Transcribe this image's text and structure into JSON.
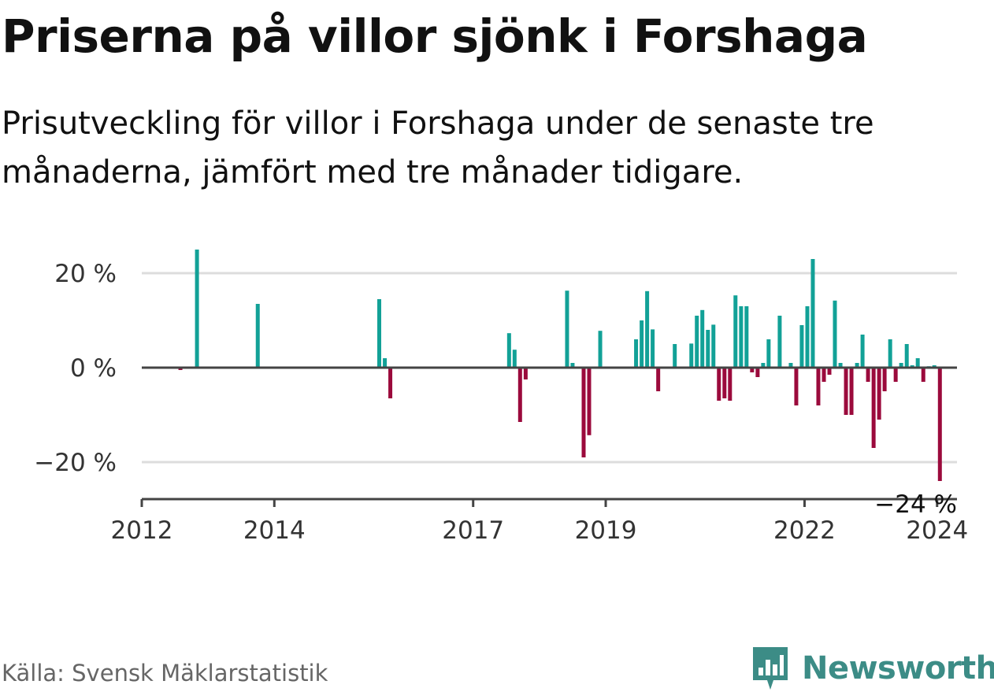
{
  "header": {
    "title": "Priserna på villor sjönk i Forshaga",
    "subtitle": "Prisutveckling för villor i Forshaga under de senaste tre månaderna, jämfört med tre månader tidigare."
  },
  "footer": {
    "source": "Källa: Svensk Mäklarstatistik",
    "brand": "Newsworthy"
  },
  "colors": {
    "positive": "#12a197",
    "negative": "#9b0a3c",
    "gridline": "#dddddd",
    "axis": "#444444",
    "brand": "#3c8c86"
  },
  "chart_data": {
    "type": "bar",
    "title": "Priserna på villor sjönk i Forshaga",
    "xlabel": "",
    "ylabel": "",
    "ylim": [
      -27,
      25
    ],
    "xlim": [
      2012,
      2024.3
    ],
    "y_ticks": [
      {
        "value": 20,
        "label": "20 %"
      },
      {
        "value": 0,
        "label": "0 %"
      },
      {
        "value": -20,
        "label": "−20 %"
      }
    ],
    "x_ticks": [
      {
        "value": 2012,
        "label": "2012"
      },
      {
        "value": 2014,
        "label": "2014"
      },
      {
        "value": 2017,
        "label": "2017"
      },
      {
        "value": 2019,
        "label": "2019"
      },
      {
        "value": 2022,
        "label": "2022"
      },
      {
        "value": 2024,
        "label": "2024"
      }
    ],
    "annotation": {
      "label": "−24 %",
      "value": -24
    },
    "x": [
      2012.583,
      2012.833,
      2013.75,
      2015.583,
      2015.667,
      2015.75,
      2017.542,
      2017.625,
      2017.708,
      2017.792,
      2018.417,
      2018.5,
      2018.667,
      2018.75,
      2018.917,
      2019.458,
      2019.542,
      2019.625,
      2019.708,
      2019.792,
      2020.042,
      2020.292,
      2020.375,
      2020.458,
      2020.542,
      2020.625,
      2020.708,
      2020.792,
      2020.875,
      2020.958,
      2021.042,
      2021.125,
      2021.208,
      2021.292,
      2021.375,
      2021.458,
      2021.625,
      2021.792,
      2021.875,
      2021.958,
      2022.042,
      2022.125,
      2022.208,
      2022.292,
      2022.375,
      2022.458,
      2022.542,
      2022.625,
      2022.708,
      2022.792,
      2022.875,
      2022.958,
      2023.042,
      2023.125,
      2023.208,
      2023.292,
      2023.375,
      2023.458,
      2023.542,
      2023.625,
      2023.708,
      2023.792,
      2023.875,
      2023.958,
      2024.042
    ],
    "values": [
      -0.5,
      25,
      13.5,
      14.5,
      2,
      -6.5,
      7.3,
      3.8,
      -11.5,
      -2.5,
      16.3,
      1,
      -19,
      -14.3,
      7.8,
      6,
      10,
      16.2,
      8.1,
      -5,
      5,
      5.1,
      11,
      12.2,
      8,
      9.1,
      -7,
      -6.5,
      -7,
      15.3,
      13,
      13,
      -1,
      -2,
      1,
      6,
      11,
      1,
      -8,
      9,
      13,
      23,
      -8,
      -3,
      -1.5,
      14.2,
      1,
      -10,
      -10,
      1,
      7,
      -3,
      -17,
      -11,
      -5,
      6,
      -3,
      1,
      5,
      0.5,
      2,
      -3,
      0.3,
      0.5,
      -24
    ]
  }
}
